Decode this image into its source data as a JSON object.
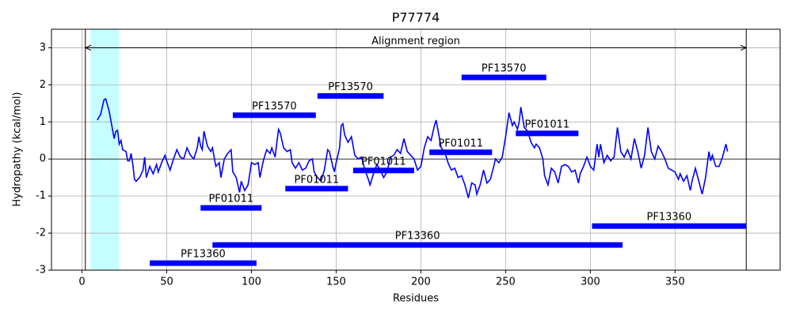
{
  "chart_data": {
    "type": "line",
    "title": "P77774",
    "x_label": "Residues",
    "y_label": "Hydropathy (kcal/mol)",
    "xlim": [
      -18,
      412
    ],
    "ylim": [
      -3,
      3.5
    ],
    "xticks": [
      0,
      50,
      100,
      150,
      200,
      250,
      300,
      350
    ],
    "yticks": [
      -3,
      -2,
      -1,
      0,
      1,
      2,
      3
    ],
    "grid": true,
    "hline": 0,
    "span": {
      "start": 5,
      "end": 22,
      "color": "#c6ffff"
    },
    "alignment": {
      "label": "Alignment region",
      "start": 2,
      "end": 392,
      "y": 3
    },
    "x": [
      9,
      11,
      13,
      14,
      16,
      18,
      19,
      20,
      21,
      22,
      23,
      24,
      26,
      27,
      28,
      29,
      30,
      31,
      32,
      34,
      36,
      37,
      38,
      40,
      42,
      44,
      45,
      47,
      49,
      50,
      52,
      54,
      56,
      58,
      60,
      62,
      64,
      66,
      68,
      69,
      70,
      71,
      72,
      74,
      76,
      77,
      79,
      81,
      82,
      84,
      86,
      88,
      89,
      91,
      93,
      94,
      96,
      98,
      100,
      102,
      104,
      105,
      107,
      109,
      111,
      112,
      114,
      115,
      116,
      117,
      119,
      121,
      123,
      124,
      126,
      128,
      130,
      132,
      134,
      136,
      137,
      139,
      141,
      143,
      145,
      146,
      148,
      149,
      150,
      152,
      153,
      154,
      155,
      157,
      159,
      160,
      161,
      163,
      165,
      167,
      169,
      170,
      172,
      174,
      176,
      178,
      180,
      182,
      184,
      186,
      188,
      190,
      192,
      194,
      196,
      198,
      200,
      202,
      204,
      206,
      208,
      209,
      210,
      212,
      214,
      216,
      218,
      220,
      222,
      224,
      226,
      228,
      230,
      232,
      233,
      235,
      237,
      239,
      241,
      243,
      244,
      246,
      248,
      250,
      252,
      254,
      255,
      257,
      258,
      259,
      261,
      263,
      265,
      267,
      268,
      270,
      272,
      273,
      275,
      277,
      279,
      281,
      283,
      285,
      287,
      289,
      291,
      293,
      294,
      296,
      298,
      300,
      302,
      304,
      305,
      306,
      308,
      310,
      312,
      314,
      316,
      318,
      320,
      322,
      324,
      326,
      328,
      330,
      332,
      334,
      336,
      338,
      340,
      342,
      344,
      346,
      348,
      350,
      352,
      353,
      355,
      357,
      359,
      360,
      362,
      364,
      366,
      368,
      370,
      371,
      372,
      374,
      376,
      378,
      380,
      381
    ],
    "series": [
      {
        "color": "#0000ff",
        "values": [
          1.05,
          1.2,
          1.6,
          1.62,
          1.3,
          0.8,
          0.55,
          0.75,
          0.77,
          0.4,
          0.5,
          0.25,
          0.2,
          -0.05,
          -0.05,
          0.15,
          -0.15,
          -0.55,
          -0.6,
          -0.5,
          -0.3,
          0.05,
          -0.5,
          -0.2,
          -0.4,
          -0.15,
          -0.35,
          -0.1,
          0.1,
          -0.05,
          -0.3,
          0.0,
          0.25,
          0.05,
          0.0,
          0.3,
          0.1,
          0.0,
          0.3,
          0.6,
          0.35,
          0.25,
          0.75,
          0.35,
          0.2,
          0.3,
          -0.2,
          -0.1,
          -0.5,
          0.0,
          0.15,
          0.25,
          -0.35,
          -0.5,
          -0.9,
          -0.6,
          -0.85,
          -0.7,
          -0.1,
          -0.15,
          -0.1,
          -0.5,
          -0.05,
          0.25,
          0.15,
          0.3,
          0.05,
          0.45,
          0.8,
          0.7,
          0.3,
          0.2,
          0.25,
          -0.1,
          -0.25,
          -0.1,
          -0.3,
          -0.25,
          -0.05,
          0.0,
          -0.35,
          -0.5,
          -0.6,
          -0.3,
          0.25,
          0.2,
          -0.2,
          -0.35,
          -0.1,
          0.3,
          0.9,
          0.95,
          0.65,
          0.45,
          0.6,
          0.35,
          0.1,
          0.0,
          0.05,
          -0.3,
          -0.55,
          -0.7,
          -0.4,
          -0.15,
          -0.3,
          -0.5,
          -0.35,
          0.05,
          0.1,
          0.25,
          0.15,
          0.55,
          0.2,
          0.1,
          0.0,
          -0.3,
          -0.2,
          0.3,
          0.6,
          0.5,
          0.9,
          1.05,
          0.8,
          0.3,
          0.2,
          -0.1,
          -0.3,
          -0.25,
          -0.5,
          -0.45,
          -0.7,
          -1.05,
          -0.65,
          -0.7,
          -0.95,
          -0.7,
          -0.3,
          -0.65,
          -0.55,
          -0.2,
          0.0,
          -0.1,
          0.05,
          0.6,
          1.25,
          0.9,
          1.0,
          0.8,
          1.0,
          1.4,
          0.85,
          0.75,
          0.45,
          0.3,
          0.4,
          0.3,
          0.0,
          -0.45,
          -0.7,
          -0.25,
          -0.35,
          -0.65,
          -0.2,
          -0.15,
          -0.2,
          -0.35,
          -0.3,
          -0.65,
          -0.4,
          -0.2,
          0.05,
          -0.2,
          -0.3,
          0.4,
          0.05,
          0.4,
          -0.1,
          0.1,
          -0.05,
          0.05,
          0.85,
          0.2,
          0.05,
          0.25,
          0.0,
          0.55,
          0.2,
          -0.25,
          0.1,
          0.85,
          0.2,
          0.0,
          0.35,
          0.2,
          0.0,
          -0.25,
          -0.3,
          -0.35,
          -0.55,
          -0.4,
          -0.6,
          -0.45,
          -0.85,
          -0.6,
          -0.25,
          -0.6,
          -0.95,
          -0.5,
          0.2,
          -0.05,
          0.1,
          -0.2,
          -0.2,
          0.05,
          0.4,
          0.2
        ]
      }
    ],
    "domain_color": "#0000ff",
    "domains": [
      {
        "label": "PF13570",
        "start": 224,
        "end": 274,
        "y": 2.2
      },
      {
        "label": "PF13570",
        "start": 139,
        "end": 178,
        "y": 1.7
      },
      {
        "label": "PF13570",
        "start": 89,
        "end": 138,
        "y": 1.18
      },
      {
        "label": "PF01011",
        "start": 256,
        "end": 293,
        "y": 0.69
      },
      {
        "label": "PF01011",
        "start": 205,
        "end": 242,
        "y": 0.18
      },
      {
        "label": "PF01011",
        "start": 160,
        "end": 196,
        "y": -0.31
      },
      {
        "label": "PF01011",
        "start": 120,
        "end": 157,
        "y": -0.8
      },
      {
        "label": "PF01011",
        "start": 70,
        "end": 106,
        "y": -1.32
      },
      {
        "label": "PF13360",
        "start": 301,
        "end": 392,
        "y": -1.81
      },
      {
        "label": "PF13360",
        "start": 77,
        "end": 319,
        "y": -2.32
      },
      {
        "label": "PF13360",
        "start": 40,
        "end": 103,
        "y": -2.81
      }
    ]
  }
}
